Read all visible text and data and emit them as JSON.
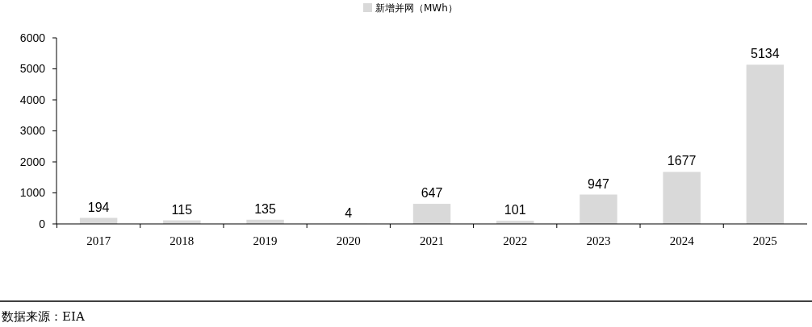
{
  "chart_data": {
    "type": "bar",
    "categories": [
      "2017",
      "2018",
      "2019",
      "2020",
      "2021",
      "2022",
      "2023",
      "2024",
      "2025"
    ],
    "series": [
      {
        "name": "新增并网（MWh）",
        "color": "#d9d9d9",
        "values": [
          194,
          115,
          135,
          4,
          647,
          101,
          947,
          1677,
          5134
        ]
      }
    ],
    "ylim": [
      0,
      6000
    ],
    "yticks": [
      0,
      1000,
      2000,
      3000,
      4000,
      5000,
      6000
    ],
    "grid": false,
    "legend": "top",
    "data_labels": true,
    "annotations": [
      "数据来源：EIA"
    ]
  }
}
